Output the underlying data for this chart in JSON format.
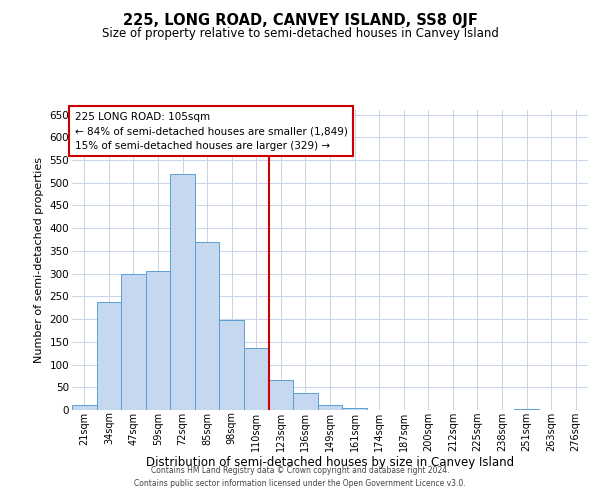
{
  "title": "225, LONG ROAD, CANVEY ISLAND, SS8 0JF",
  "subtitle": "Size of property relative to semi-detached houses in Canvey Island",
  "xlabel": "Distribution of semi-detached houses by size in Canvey Island",
  "ylabel": "Number of semi-detached properties",
  "bin_labels": [
    "21sqm",
    "34sqm",
    "47sqm",
    "59sqm",
    "72sqm",
    "85sqm",
    "98sqm",
    "110sqm",
    "123sqm",
    "136sqm",
    "149sqm",
    "161sqm",
    "174sqm",
    "187sqm",
    "200sqm",
    "212sqm",
    "225sqm",
    "238sqm",
    "251sqm",
    "263sqm",
    "276sqm"
  ],
  "bin_values": [
    12,
    238,
    300,
    305,
    520,
    370,
    197,
    136,
    65,
    38,
    10,
    5,
    0,
    0,
    0,
    0,
    0,
    0,
    2,
    0,
    1
  ],
  "bar_color": "#c5d8f0",
  "bar_edge_color": "#5a9fd4",
  "annotation_text_line1": "225 LONG ROAD: 105sqm",
  "annotation_text_line2": "← 84% of semi-detached houses are smaller (1,849)",
  "annotation_text_line3": "15% of semi-detached houses are larger (329) →",
  "vline_color": "#cc0000",
  "annotation_box_color": "#cc0000",
  "ylim": [
    0,
    660
  ],
  "yticks": [
    0,
    50,
    100,
    150,
    200,
    250,
    300,
    350,
    400,
    450,
    500,
    550,
    600,
    650
  ],
  "footer_line1": "Contains HM Land Registry data © Crown copyright and database right 2024.",
  "footer_line2": "Contains public sector information licensed under the Open Government Licence v3.0.",
  "background_color": "#ffffff",
  "grid_color": "#c8d4e8",
  "vline_x_index": 7.5
}
